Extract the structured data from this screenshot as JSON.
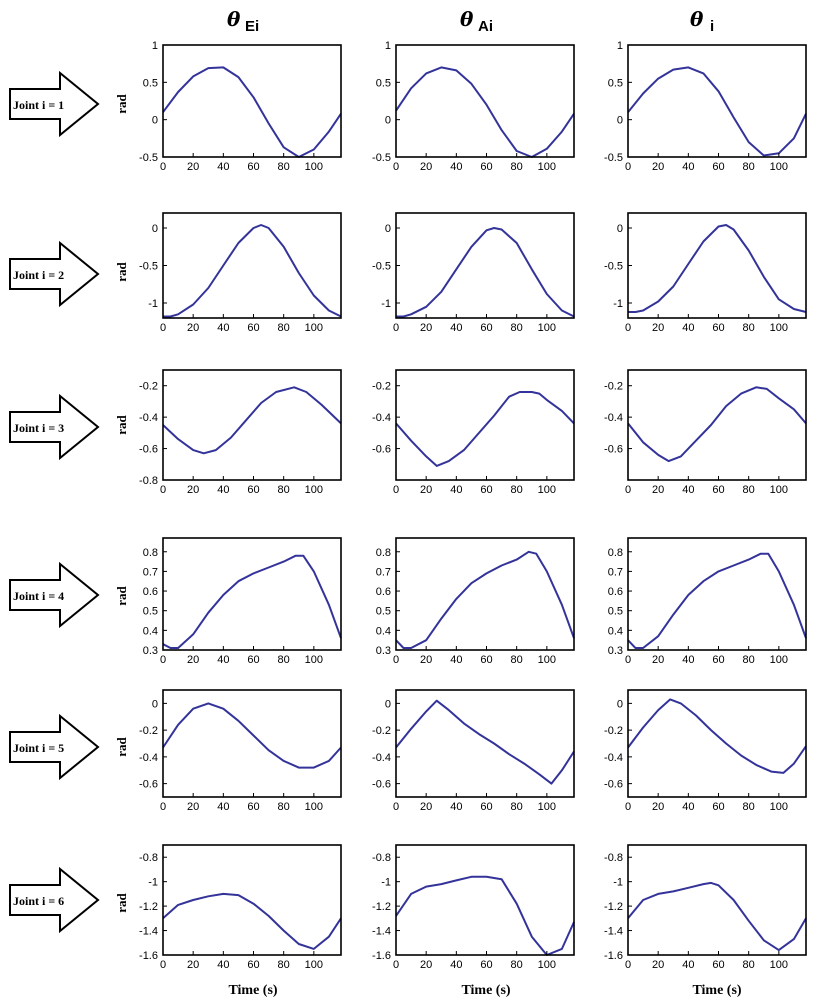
{
  "columns": [
    {
      "symbol": "θ",
      "sub": "Ei"
    },
    {
      "symbol": "θ",
      "sub": "Ai"
    },
    {
      "symbol": "θ",
      "sub": "i"
    }
  ],
  "row_labels": [
    "Joint i = 1",
    "Joint i = 2",
    "Joint i = 3",
    "Joint i = 4",
    "Joint i = 5",
    "Joint i = 6"
  ],
  "ylabel": "rad",
  "xlabel": "Time (s)",
  "x_ticks": [
    0,
    20,
    40,
    60,
    80,
    100
  ],
  "line_color": "#33339a",
  "chart_data": [
    {
      "type": "line",
      "ylabel": "rad",
      "xlim": [
        0,
        118
      ],
      "ylim": [
        -0.5,
        1
      ],
      "yticks": [
        -0.5,
        0,
        0.5,
        1
      ],
      "x": [
        0,
        10,
        20,
        30,
        40,
        50,
        60,
        70,
        80,
        90,
        100,
        110,
        118
      ],
      "y": [
        0.1,
        0.37,
        0.58,
        0.69,
        0.7,
        0.57,
        0.3,
        -0.05,
        -0.37,
        -0.5,
        -0.4,
        -0.16,
        0.08
      ]
    },
    {
      "type": "line",
      "xlim": [
        0,
        118
      ],
      "ylim": [
        -0.5,
        1
      ],
      "yticks": [
        -0.5,
        0,
        0.5,
        1
      ],
      "x": [
        0,
        10,
        20,
        30,
        40,
        50,
        60,
        70,
        80,
        90,
        100,
        110,
        118
      ],
      "y": [
        0.12,
        0.42,
        0.62,
        0.7,
        0.66,
        0.48,
        0.2,
        -0.14,
        -0.42,
        -0.5,
        -0.39,
        -0.16,
        0.08
      ]
    },
    {
      "type": "line",
      "xlim": [
        0,
        118
      ],
      "ylim": [
        -0.5,
        1
      ],
      "yticks": [
        -0.5,
        0,
        0.5,
        1
      ],
      "x": [
        0,
        10,
        20,
        30,
        40,
        50,
        60,
        70,
        80,
        90,
        100,
        110,
        118
      ],
      "y": [
        0.1,
        0.35,
        0.55,
        0.67,
        0.7,
        0.62,
        0.38,
        0.03,
        -0.3,
        -0.48,
        -0.45,
        -0.25,
        0.08
      ]
    },
    {
      "type": "line",
      "ylabel": "rad",
      "xlim": [
        0,
        118
      ],
      "ylim": [
        -1.2,
        0.2
      ],
      "yticks": [
        -1,
        -0.5,
        0
      ],
      "x": [
        0,
        5,
        10,
        20,
        30,
        40,
        50,
        60,
        65,
        70,
        80,
        90,
        100,
        110,
        118
      ],
      "y": [
        -1.18,
        -1.18,
        -1.15,
        -1.02,
        -0.8,
        -0.5,
        -0.2,
        0.0,
        0.04,
        0.0,
        -0.25,
        -0.6,
        -0.9,
        -1.1,
        -1.18
      ]
    },
    {
      "type": "line",
      "xlim": [
        0,
        118
      ],
      "ylim": [
        -1.2,
        0.2
      ],
      "yticks": [
        -1,
        -0.5,
        0
      ],
      "x": [
        0,
        5,
        10,
        20,
        30,
        40,
        50,
        60,
        65,
        70,
        80,
        90,
        100,
        110,
        118
      ],
      "y": [
        -1.18,
        -1.18,
        -1.15,
        -1.05,
        -0.85,
        -0.55,
        -0.25,
        -0.03,
        0.0,
        -0.02,
        -0.2,
        -0.55,
        -0.88,
        -1.1,
        -1.18
      ]
    },
    {
      "type": "line",
      "xlim": [
        0,
        118
      ],
      "ylim": [
        -1.2,
        0.2
      ],
      "yticks": [
        -1,
        -0.5,
        0
      ],
      "x": [
        0,
        5,
        10,
        20,
        30,
        40,
        50,
        60,
        65,
        70,
        80,
        90,
        100,
        110,
        118
      ],
      "y": [
        -1.12,
        -1.12,
        -1.1,
        -0.98,
        -0.78,
        -0.48,
        -0.18,
        0.02,
        0.04,
        -0.02,
        -0.3,
        -0.65,
        -0.95,
        -1.08,
        -1.12
      ]
    },
    {
      "type": "line",
      "ylabel": "rad",
      "xlim": [
        0,
        118
      ],
      "ylim": [
        -0.8,
        -0.1
      ],
      "yticks": [
        -0.8,
        -0.6,
        -0.4,
        -0.2
      ],
      "x": [
        0,
        10,
        20,
        27,
        35,
        45,
        55,
        65,
        75,
        87,
        95,
        105,
        118
      ],
      "y": [
        -0.45,
        -0.54,
        -0.61,
        -0.63,
        -0.61,
        -0.53,
        -0.42,
        -0.31,
        -0.24,
        -0.21,
        -0.24,
        -0.32,
        -0.44
      ]
    },
    {
      "type": "line",
      "xlim": [
        0,
        118
      ],
      "ylim": [
        -0.8,
        -0.1
      ],
      "yticks": [
        -0.6,
        -0.4,
        -0.2
      ],
      "x": [
        0,
        10,
        20,
        27,
        35,
        45,
        55,
        65,
        75,
        82,
        90,
        95,
        100,
        110,
        118
      ],
      "y": [
        -0.44,
        -0.55,
        -0.65,
        -0.71,
        -0.68,
        -0.61,
        -0.5,
        -0.39,
        -0.27,
        -0.24,
        -0.24,
        -0.25,
        -0.29,
        -0.36,
        -0.44
      ]
    },
    {
      "type": "line",
      "xlim": [
        0,
        118
      ],
      "ylim": [
        -0.8,
        -0.1
      ],
      "yticks": [
        -0.6,
        -0.4,
        -0.2
      ],
      "x": [
        0,
        10,
        20,
        27,
        35,
        45,
        55,
        65,
        75,
        85,
        92,
        100,
        110,
        118
      ],
      "y": [
        -0.44,
        -0.56,
        -0.64,
        -0.68,
        -0.65,
        -0.55,
        -0.45,
        -0.33,
        -0.25,
        -0.21,
        -0.22,
        -0.28,
        -0.35,
        -0.44
      ]
    },
    {
      "type": "line",
      "ylabel": "rad",
      "xlim": [
        0,
        118
      ],
      "ylim": [
        0.3,
        0.87
      ],
      "yticks": [
        0.3,
        0.4,
        0.5,
        0.6,
        0.7,
        0.8
      ],
      "x": [
        0,
        5,
        10,
        20,
        30,
        40,
        50,
        60,
        70,
        80,
        88,
        93,
        100,
        110,
        118
      ],
      "y": [
        0.33,
        0.31,
        0.31,
        0.38,
        0.49,
        0.58,
        0.65,
        0.69,
        0.72,
        0.75,
        0.78,
        0.78,
        0.7,
        0.53,
        0.36
      ]
    },
    {
      "type": "line",
      "xlim": [
        0,
        118
      ],
      "ylim": [
        0.3,
        0.87
      ],
      "yticks": [
        0.3,
        0.4,
        0.5,
        0.6,
        0.7,
        0.8
      ],
      "x": [
        0,
        5,
        10,
        20,
        30,
        40,
        50,
        60,
        70,
        80,
        88,
        93,
        100,
        110,
        118
      ],
      "y": [
        0.35,
        0.31,
        0.31,
        0.35,
        0.46,
        0.56,
        0.64,
        0.69,
        0.73,
        0.76,
        0.8,
        0.79,
        0.7,
        0.53,
        0.36
      ]
    },
    {
      "type": "line",
      "xlim": [
        0,
        118
      ],
      "ylim": [
        0.3,
        0.87
      ],
      "yticks": [
        0.3,
        0.4,
        0.5,
        0.6,
        0.7,
        0.8
      ],
      "x": [
        0,
        5,
        10,
        20,
        30,
        40,
        50,
        60,
        70,
        80,
        88,
        93,
        100,
        110,
        118
      ],
      "y": [
        0.35,
        0.31,
        0.31,
        0.37,
        0.48,
        0.58,
        0.65,
        0.7,
        0.73,
        0.76,
        0.79,
        0.79,
        0.7,
        0.53,
        0.36
      ]
    },
    {
      "type": "line",
      "ylabel": "rad",
      "xlim": [
        0,
        118
      ],
      "ylim": [
        -0.7,
        0.1
      ],
      "yticks": [
        -0.6,
        -0.4,
        -0.2,
        0
      ],
      "x": [
        0,
        10,
        20,
        30,
        40,
        50,
        60,
        70,
        80,
        90,
        100,
        110,
        118
      ],
      "y": [
        -0.33,
        -0.16,
        -0.04,
        0.0,
        -0.04,
        -0.13,
        -0.24,
        -0.35,
        -0.43,
        -0.48,
        -0.48,
        -0.43,
        -0.33
      ]
    },
    {
      "type": "line",
      "xlim": [
        0,
        118
      ],
      "ylim": [
        -0.7,
        0.1
      ],
      "yticks": [
        -0.6,
        -0.4,
        -0.2,
        0
      ],
      "x": [
        0,
        10,
        20,
        27,
        35,
        45,
        55,
        65,
        75,
        85,
        95,
        103,
        110,
        118
      ],
      "y": [
        -0.33,
        -0.19,
        -0.06,
        0.02,
        -0.05,
        -0.15,
        -0.23,
        -0.3,
        -0.38,
        -0.45,
        -0.53,
        -0.6,
        -0.5,
        -0.36
      ]
    },
    {
      "type": "line",
      "xlim": [
        0,
        118
      ],
      "ylim": [
        -0.7,
        0.1
      ],
      "yticks": [
        -0.6,
        -0.4,
        -0.2,
        0
      ],
      "x": [
        0,
        10,
        20,
        28,
        35,
        45,
        55,
        65,
        75,
        85,
        95,
        103,
        110,
        118
      ],
      "y": [
        -0.33,
        -0.18,
        -0.05,
        0.03,
        0.0,
        -0.09,
        -0.2,
        -0.3,
        -0.39,
        -0.46,
        -0.51,
        -0.52,
        -0.45,
        -0.32
      ]
    },
    {
      "type": "line",
      "ylabel": "rad",
      "xlim": [
        0,
        118
      ],
      "ylim": [
        -1.6,
        -0.7
      ],
      "yticks": [
        -1.6,
        -1.4,
        -1.2,
        -1,
        -0.8
      ],
      "x": [
        0,
        10,
        20,
        30,
        40,
        50,
        60,
        70,
        80,
        90,
        100,
        110,
        118
      ],
      "y": [
        -1.3,
        -1.19,
        -1.15,
        -1.12,
        -1.1,
        -1.11,
        -1.18,
        -1.28,
        -1.4,
        -1.51,
        -1.55,
        -1.45,
        -1.3
      ]
    },
    {
      "type": "line",
      "xlim": [
        0,
        118
      ],
      "ylim": [
        -1.6,
        -0.7
      ],
      "yticks": [
        -1.6,
        -1.4,
        -1.2,
        -1,
        -0.8
      ],
      "x": [
        0,
        10,
        20,
        30,
        40,
        50,
        60,
        70,
        80,
        90,
        100,
        110,
        118
      ],
      "y": [
        -1.28,
        -1.1,
        -1.04,
        -1.02,
        -0.99,
        -0.96,
        -0.96,
        -0.98,
        -1.18,
        -1.45,
        -1.6,
        -1.55,
        -1.33
      ]
    },
    {
      "type": "line",
      "xlim": [
        0,
        118
      ],
      "ylim": [
        -1.6,
        -0.7
      ],
      "yticks": [
        -1.6,
        -1.4,
        -1.2,
        -1,
        -0.8
      ],
      "x": [
        0,
        10,
        20,
        30,
        40,
        50,
        55,
        60,
        70,
        80,
        90,
        100,
        110,
        118
      ],
      "y": [
        -1.3,
        -1.15,
        -1.1,
        -1.08,
        -1.05,
        -1.02,
        -1.01,
        -1.03,
        -1.15,
        -1.32,
        -1.48,
        -1.56,
        -1.47,
        -1.3
      ]
    }
  ]
}
